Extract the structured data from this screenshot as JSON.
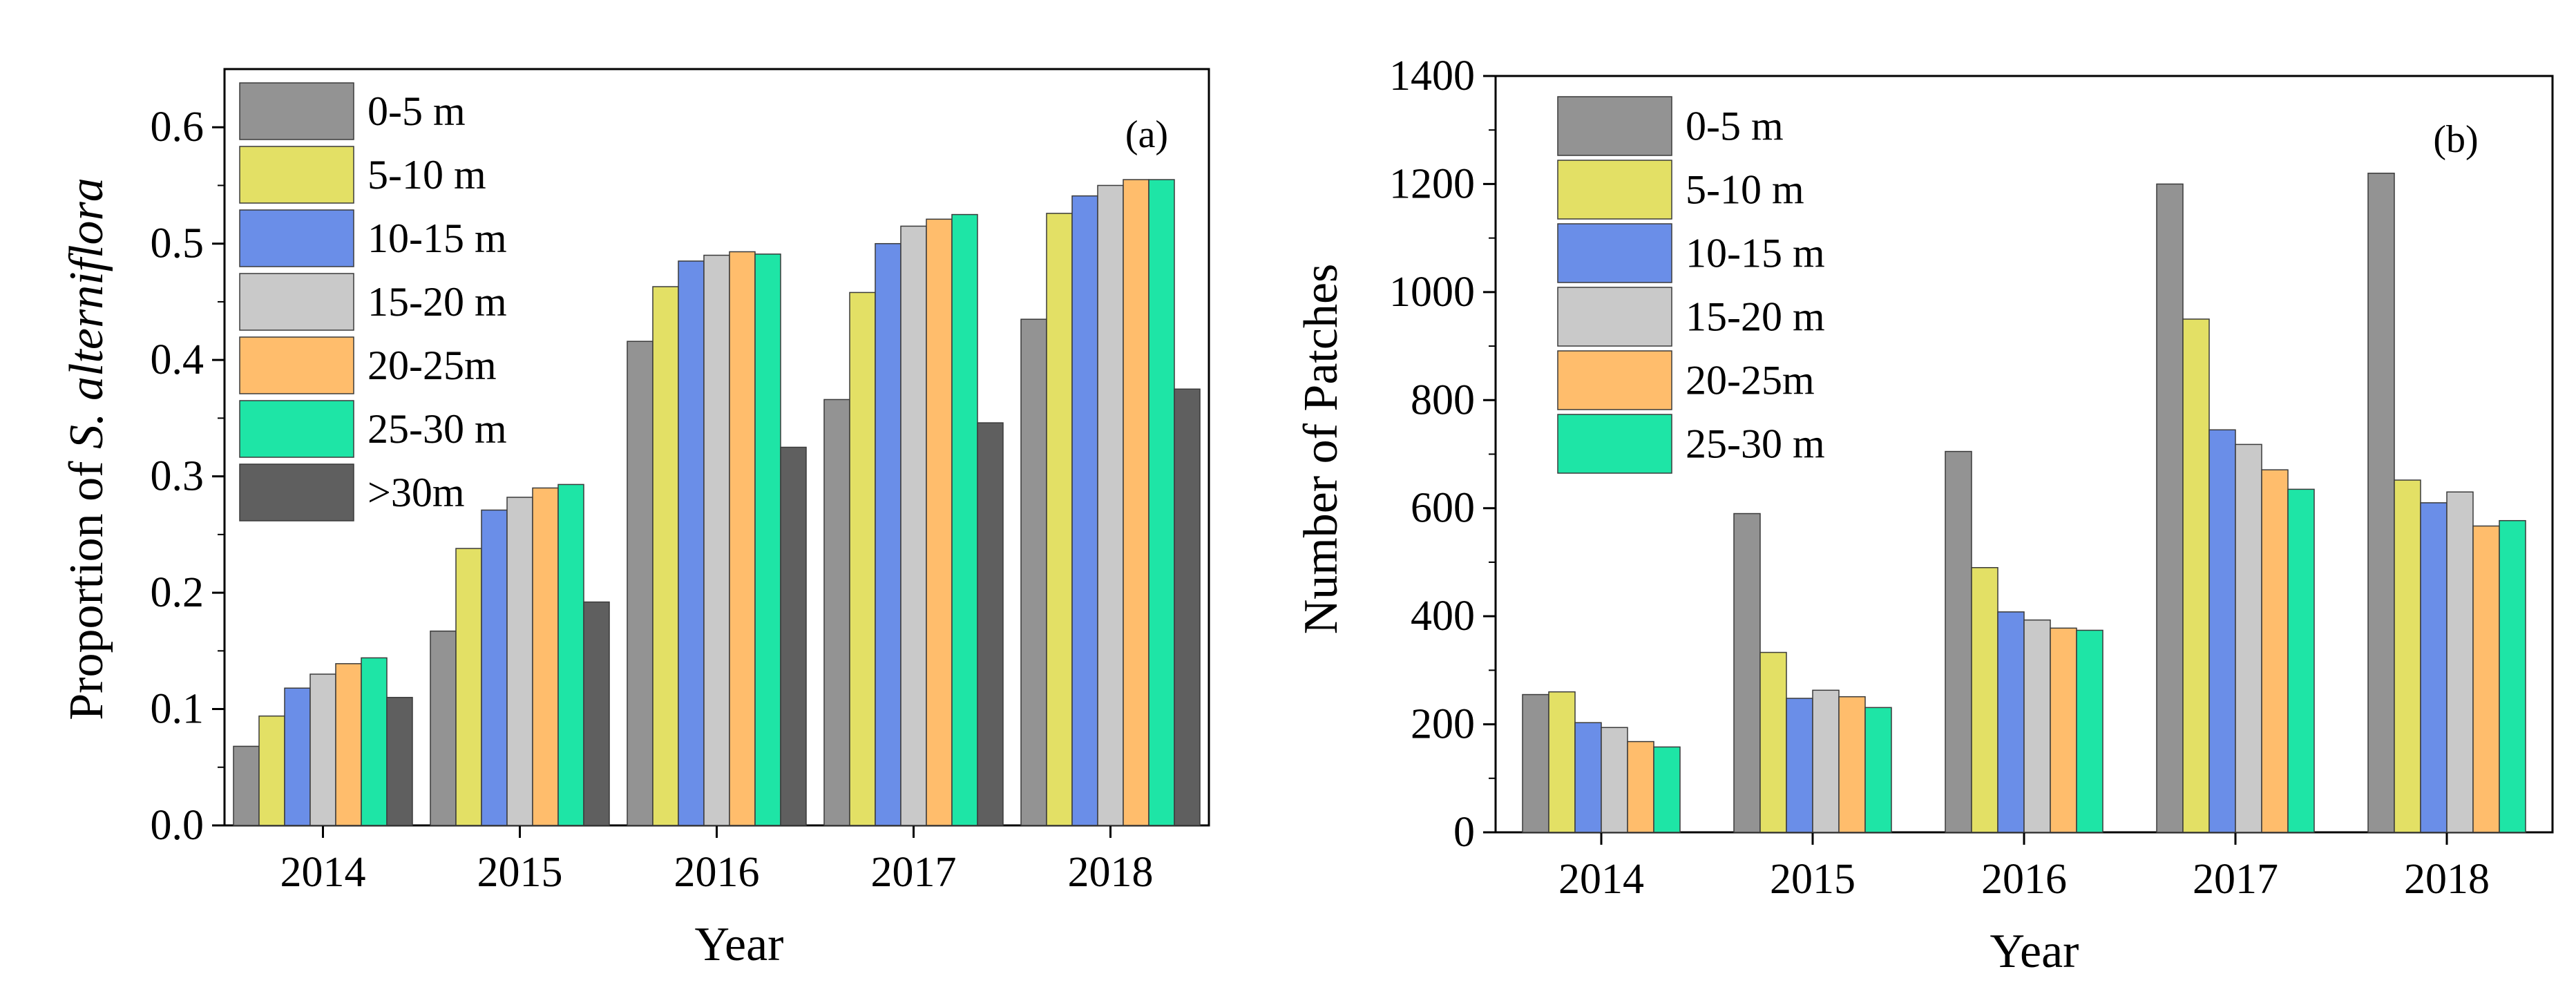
{
  "chart_data": [
    {
      "type": "bar",
      "panel_label": "(a)",
      "title": "",
      "xlabel": "Year",
      "ylabel_prefix": "Proportion of ",
      "ylabel_italic": "S. alterniflora",
      "categories": [
        "2014",
        "2015",
        "2016",
        "2017",
        "2018"
      ],
      "ylim": [
        0,
        0.65
      ],
      "yticks": [
        0.0,
        0.1,
        0.2,
        0.3,
        0.4,
        0.5,
        0.6
      ],
      "ytick_labels": [
        "0.0",
        "0.1",
        "0.2",
        "0.3",
        "0.4",
        "0.5",
        "0.6"
      ],
      "legend_position": "top-left",
      "series": [
        {
          "name": "0-5 m",
          "color": "#939393",
          "values": [
            0.068,
            0.167,
            0.416,
            0.366,
            0.435
          ]
        },
        {
          "name": "5-10 m",
          "color": "#e3e065",
          "values": [
            0.094,
            0.238,
            0.463,
            0.458,
            0.526
          ]
        },
        {
          "name": "10-15 m",
          "color": "#6a8ee8",
          "values": [
            0.118,
            0.271,
            0.485,
            0.5,
            0.541
          ]
        },
        {
          "name": "15-20 m",
          "color": "#c9c9c9",
          "values": [
            0.13,
            0.282,
            0.49,
            0.515,
            0.55
          ]
        },
        {
          "name": "20-25m",
          "color": "#ffbd6c",
          "values": [
            0.139,
            0.29,
            0.493,
            0.521,
            0.555
          ]
        },
        {
          "name": "25-30 m",
          "color": "#1ee5a6",
          "values": [
            0.144,
            0.293,
            0.491,
            0.525,
            0.555
          ]
        },
        {
          "name": ">30m",
          "color": "#5f5f5f",
          "values": [
            0.11,
            0.192,
            0.325,
            0.346,
            0.375
          ]
        }
      ]
    },
    {
      "type": "bar",
      "panel_label": "(b)",
      "title": "",
      "xlabel": "Year",
      "ylabel": "Number of Patches",
      "categories": [
        "2014",
        "2015",
        "2016",
        "2017",
        "2018"
      ],
      "ylim": [
        0,
        1400
      ],
      "yticks": [
        0,
        200,
        400,
        600,
        800,
        1000,
        1200,
        1400
      ],
      "ytick_labels": [
        "0",
        "200",
        "400",
        "600",
        "800",
        "1000",
        "1200",
        "1400"
      ],
      "legend_position": "top-left",
      "series": [
        {
          "name": "0-5 m",
          "color": "#939393",
          "values": [
            255,
            590,
            705,
            1200,
            1220
          ]
        },
        {
          "name": "5-10 m",
          "color": "#e3e065",
          "values": [
            260,
            333,
            490,
            950,
            652
          ]
        },
        {
          "name": "10-15 m",
          "color": "#6a8ee8",
          "values": [
            203,
            248,
            408,
            745,
            610
          ]
        },
        {
          "name": "15-20 m",
          "color": "#c9c9c9",
          "values": [
            194,
            263,
            393,
            718,
            630
          ]
        },
        {
          "name": "20-25m",
          "color": "#ffbd6c",
          "values": [
            168,
            251,
            378,
            671,
            567
          ]
        },
        {
          "name": "25-30 m",
          "color": "#1ee5a6",
          "values": [
            158,
            231,
            374,
            635,
            577
          ]
        }
      ]
    }
  ]
}
